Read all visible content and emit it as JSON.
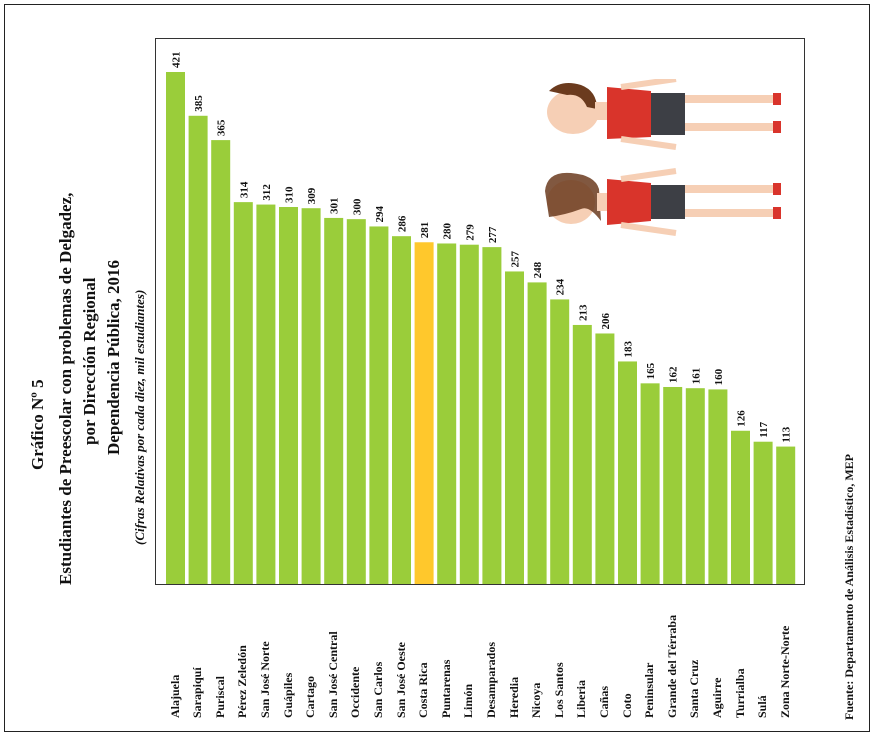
{
  "title": {
    "line1": "Gráfico Nº 5",
    "line2": "Estudiantes de Preescolar con problemas de Delgadez,",
    "line3": "por Dirección Regional",
    "line4": "Dependencia Pública, 2016",
    "line5": "(Cifras  Relativas por cada diez, mil estudiantes)"
  },
  "source": "Fuente: Departamento de Análisis Estadístico, MEP",
  "colors": {
    "bar": "#9ACD3A",
    "highlight": "#FFC82C"
  },
  "chart_data": {
    "type": "bar",
    "orientation": "vertical, rotated labels",
    "categories": [
      "Alajuela",
      "Sarapiquí",
      "Puriscal",
      "Pérez Zeledón",
      "San José Norte",
      "Guápiles",
      "Cartago",
      "San José Central",
      "Occidente",
      "San Carlos",
      "San José Oeste",
      "Costa Rica",
      "Puntarenas",
      "Limón",
      "Desamparados",
      "Heredia",
      "Nicoya",
      "Los Santos",
      "Liberia",
      "Cañas",
      "Coto",
      "Peninsular",
      "Grande del Térraba",
      "Santa Cruz",
      "Aguirre",
      "Turrialba",
      "Sulá",
      "Zona Norte-Norte"
    ],
    "values": [
      421,
      385,
      365,
      314,
      312,
      310,
      309,
      301,
      300,
      294,
      286,
      281,
      280,
      279,
      277,
      257,
      248,
      234,
      213,
      206,
      183,
      165,
      162,
      161,
      160,
      126,
      117,
      113
    ],
    "value_labels": [
      "421",
      "385",
      "365",
      "314",
      "312",
      "310",
      "309",
      "301",
      "300",
      "294",
      "286",
      "281",
      "280",
      "279",
      "277",
      "257",
      "248",
      "234",
      "213",
      "206",
      "183",
      "165",
      "162",
      "161",
      "160",
      "126",
      "117",
      "113"
    ],
    "highlight": "Costa Rica",
    "ylim": [
      0,
      421
    ],
    "grid": false,
    "legend": "none"
  }
}
